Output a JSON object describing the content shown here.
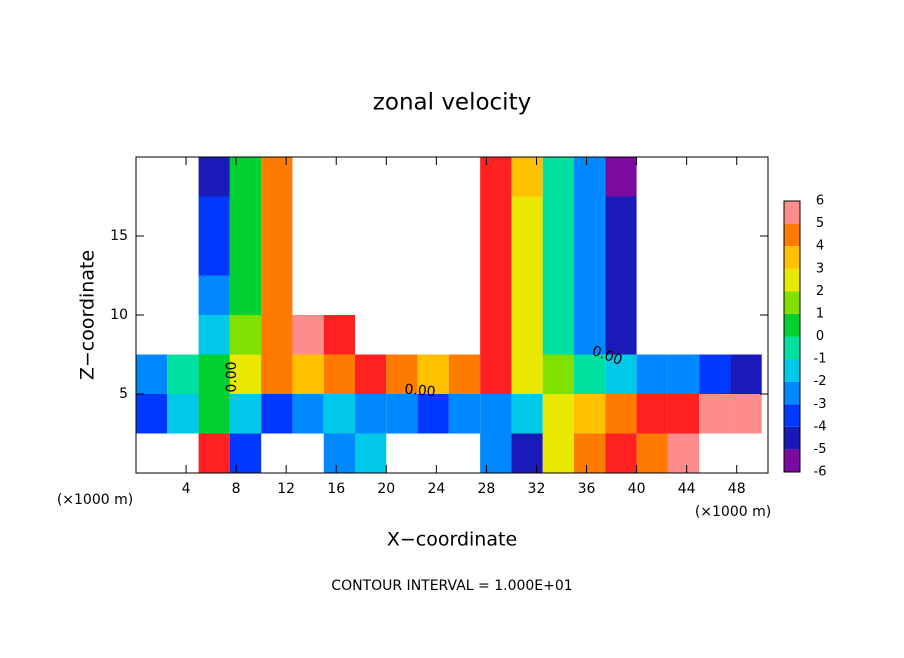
{
  "chart_data": {
    "type": "heatmap",
    "title": "zonal velocity",
    "x_label": "X−coordinate",
    "y_label": "Z−coordinate",
    "x_unit": "(×1000 m)",
    "y_unit": "(×1000 m)",
    "footnote": "CONTOUR INTERVAL = 1.000E+01",
    "contour_labels": [
      "0.00",
      "0.00",
      "0.00"
    ],
    "x": [
      1.25,
      3.75,
      6.25,
      8.75,
      11.25,
      13.75,
      16.25,
      18.75,
      21.25,
      23.75,
      26.25,
      28.75,
      31.25,
      33.75,
      36.25,
      38.75,
      41.25,
      43.75,
      46.25,
      48.75
    ],
    "y": [
      1.25,
      3.75,
      6.25,
      8.75,
      11.25,
      13.75,
      16.25,
      18.75
    ],
    "values": [
      [
        null,
        null,
        5,
        -4,
        null,
        null,
        -3,
        -2,
        null,
        null,
        null,
        -3,
        -5,
        2,
        4,
        5,
        4,
        6,
        null,
        null
      ],
      [
        -4,
        -2,
        0,
        -2,
        -4,
        -3,
        -2,
        -3,
        -3,
        -4,
        -3,
        -3,
        -2,
        2,
        3,
        4,
        5,
        5,
        6,
        6
      ],
      [
        -3,
        -1,
        0,
        2,
        4,
        3,
        4,
        5,
        4,
        3,
        4,
        5,
        2,
        1,
        -1,
        -2,
        -3,
        -3,
        -4,
        -5
      ],
      [
        null,
        null,
        -2,
        1,
        4,
        6,
        5,
        null,
        null,
        null,
        null,
        5,
        2,
        -1,
        -3,
        -5,
        null,
        null,
        null,
        null
      ],
      [
        null,
        null,
        -3,
        0,
        4,
        null,
        null,
        null,
        null,
        null,
        null,
        5,
        2,
        -1,
        -3,
        -5,
        null,
        null,
        null,
        null
      ],
      [
        null,
        null,
        -4,
        0,
        4,
        null,
        null,
        null,
        null,
        null,
        null,
        5,
        2,
        -1,
        -3,
        -5,
        null,
        null,
        null,
        null
      ],
      [
        null,
        null,
        -4,
        0,
        4,
        null,
        null,
        null,
        null,
        null,
        null,
        5,
        2,
        -1,
        -3,
        -5,
        null,
        null,
        null,
        null
      ],
      [
        null,
        null,
        -5,
        0,
        4,
        null,
        null,
        null,
        null,
        null,
        null,
        5,
        3,
        -1,
        -3,
        -6,
        null,
        null,
        null,
        null
      ]
    ],
    "levels": [
      -6,
      -5,
      -4,
      -3,
      -2,
      -1,
      0,
      1,
      2,
      3,
      4,
      5,
      6
    ],
    "colors": [
      "#7a0aa0",
      "#1a1ab8",
      "#0038ff",
      "#0088ff",
      "#00c8e8",
      "#00e0a0",
      "#00d030",
      "#80e000",
      "#e8e800",
      "#ffc000",
      "#ff7a00",
      "#ff2020",
      "#ff8c8c"
    ],
    "xlim": [
      0,
      50.5
    ],
    "ylim": [
      0,
      20
    ],
    "xticks": [
      4,
      8,
      12,
      16,
      20,
      24,
      28,
      32,
      36,
      40,
      44,
      48
    ],
    "yticks": [
      5,
      10,
      15
    ]
  }
}
